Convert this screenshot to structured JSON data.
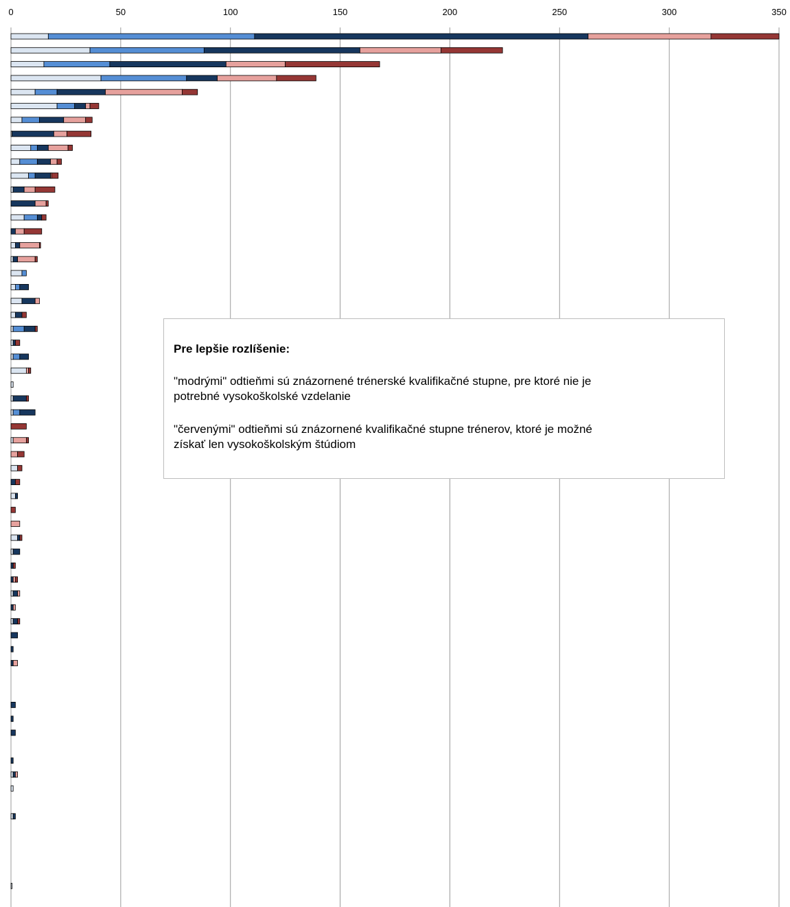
{
  "chart_data": {
    "type": "bar",
    "orientation": "horizontal",
    "stacked": true,
    "xlim": [
      0,
      350
    ],
    "x_ticks": [
      0,
      50,
      100,
      150,
      200,
      250,
      300,
      350
    ],
    "x_tick_labels": [
      "0",
      "50",
      "100",
      "150",
      "200",
      "250",
      "300",
      "350"
    ],
    "grid": "vertical",
    "title": "",
    "xlabel": "",
    "ylabel": "",
    "series_colors": [
      "#dbe5f1",
      "#558ed5",
      "#17375e",
      "#e6a19d",
      "#953735"
    ],
    "series": [
      {
        "values": [
          17,
          36,
          15,
          41,
          11,
          21,
          5,
          0.5,
          9,
          4,
          8,
          1,
          0,
          6,
          0,
          2,
          1,
          5,
          2,
          5,
          2,
          1,
          1,
          1,
          7,
          1,
          1,
          1,
          0,
          1,
          0,
          3,
          0,
          2,
          0,
          0,
          3,
          1,
          0,
          0,
          1,
          0,
          1,
          0,
          0,
          0,
          0,
          0,
          0,
          0,
          0,
          0,
          0,
          1,
          1,
          0,
          1,
          0,
          0,
          0,
          0,
          0.5
        ]
      },
      {
        "values": [
          94,
          52,
          30,
          39,
          10,
          8,
          8,
          0,
          3,
          8,
          3,
          0,
          0,
          6,
          0,
          0,
          0,
          2,
          2,
          0,
          0,
          5,
          0,
          3,
          0,
          0,
          0,
          3,
          0,
          0,
          0,
          0,
          0,
          0,
          0,
          0,
          0,
          0,
          0,
          0,
          0,
          0,
          0,
          0,
          0,
          0,
          0,
          0,
          0,
          0,
          0,
          0,
          0,
          0,
          0,
          0,
          0,
          0,
          0,
          0,
          0,
          0
        ]
      },
      {
        "values": [
          152,
          71,
          53,
          14,
          22,
          5,
          11,
          19,
          5,
          6,
          7,
          5,
          11,
          2,
          2,
          2,
          2,
          0,
          4,
          6,
          3,
          5,
          1,
          4,
          0,
          0,
          6,
          7,
          0,
          0,
          0,
          0,
          2,
          1,
          0,
          0,
          1,
          3,
          1,
          1,
          2,
          1,
          2,
          3,
          1,
          1,
          0,
          0,
          2,
          1,
          2,
          0,
          1,
          1,
          0,
          0,
          1,
          0,
          0,
          0,
          0,
          0
        ]
      },
      {
        "values": [
          56,
          37,
          27,
          27,
          35,
          2,
          10,
          6,
          9,
          3,
          0.5,
          5,
          5,
          0,
          4,
          9,
          8,
          0,
          0,
          2,
          0,
          0,
          0,
          0,
          1,
          0,
          0,
          0,
          0,
          6,
          3,
          0,
          0,
          0,
          0,
          4,
          0,
          0,
          0,
          1,
          1,
          1,
          0,
          0,
          0,
          2,
          0,
          0,
          0,
          0,
          0,
          0,
          0,
          1,
          0,
          0,
          0,
          0,
          0,
          0,
          0,
          0
        ]
      },
      {
        "values": [
          31,
          28,
          43,
          18,
          7,
          4,
          3,
          11,
          2,
          2,
          3,
          9,
          1,
          2,
          8,
          0.5,
          1,
          0,
          0,
          0,
          2,
          1,
          2,
          0,
          1,
          0,
          1,
          0,
          7,
          1,
          3,
          2,
          2,
          0,
          2,
          0,
          1,
          0,
          1,
          1,
          0,
          0,
          1,
          0,
          0,
          0,
          0,
          0,
          0,
          0,
          0,
          0,
          0,
          0,
          0,
          0,
          0,
          0,
          0,
          0,
          0,
          0
        ]
      }
    ]
  },
  "note": {
    "title": "Pre lepšie rozlíšenie:",
    "blue_line_1": "\"modrými\" odtieňmi sú znázornené trénerské kvalifikačné stupne,  pre ktoré nie je",
    "blue_line_2": "potrebné vysokoškolské vzdelanie",
    "red_line_1": "\"červenými\" odtieňmi sú znázornené kvalifikačné stupne  trénerov, ktoré je možné",
    "red_line_2": "získať len vysokoškolským štúdiom"
  }
}
